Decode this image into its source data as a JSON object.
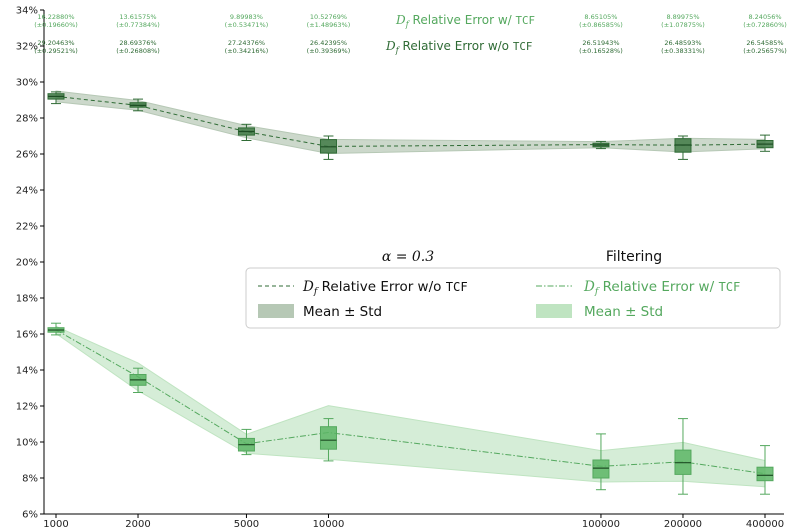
{
  "chart_data": {
    "type": "line",
    "x_scale": "log",
    "x_ticks": [
      "1000",
      "2000",
      "5000",
      "10000",
      "100000",
      "200000",
      "400000"
    ],
    "x": [
      1000,
      2000,
      5000,
      10000,
      100000,
      200000,
      400000
    ],
    "ylim": [
      6,
      34
    ],
    "y_ticks": [
      6,
      8,
      10,
      12,
      14,
      16,
      18,
      20,
      22,
      24,
      26,
      28,
      30,
      32,
      34
    ],
    "y_tick_labels": [
      "6%",
      "8%",
      "10%",
      "12%",
      "14%",
      "16%",
      "18%",
      "20%",
      "22%",
      "24%",
      "26%",
      "28%",
      "30%",
      "32%",
      "34%"
    ],
    "grid": false,
    "colors": {
      "wo": "#2f6b35",
      "wo_band": "#b6c8b5",
      "wo_box": "#3f7a45",
      "w": "#54a85e",
      "w_band": "#bfe4c1",
      "w_box": "#5cb565"
    },
    "series": [
      {
        "name": "Df Relative Error w/o TCF",
        "key": "wo",
        "mean": [
          29.2,
          28.7,
          27.24,
          26.42,
          26.52,
          26.49,
          26.55
        ],
        "std": [
          0.3,
          0.27,
          0.34,
          0.39,
          0.17,
          0.38,
          0.26
        ],
        "box": [
          {
            "whislo": 28.8,
            "q1": 29.05,
            "med": 29.2,
            "q3": 29.35,
            "whishi": 29.45
          },
          {
            "whislo": 28.4,
            "q1": 28.6,
            "med": 28.7,
            "q3": 28.85,
            "whishi": 29.05
          },
          {
            "whislo": 26.75,
            "q1": 27.05,
            "med": 27.25,
            "q3": 27.45,
            "whishi": 27.65
          },
          {
            "whislo": 25.7,
            "q1": 26.05,
            "med": 26.4,
            "q3": 26.8,
            "whishi": 27.0
          },
          {
            "whislo": 26.3,
            "q1": 26.4,
            "med": 26.5,
            "q3": 26.6,
            "whishi": 26.7
          },
          {
            "whislo": 25.7,
            "q1": 26.1,
            "med": 26.5,
            "q3": 26.85,
            "whishi": 27.0
          },
          {
            "whislo": 26.15,
            "q1": 26.35,
            "med": 26.55,
            "q3": 26.75,
            "whishi": 27.05
          }
        ]
      },
      {
        "name": "Df Relative Error w/ TCF",
        "key": "w",
        "mean": [
          16.23,
          13.62,
          9.9,
          10.53,
          8.65,
          8.9,
          8.24
        ],
        "std": [
          0.2,
          0.77,
          0.53,
          1.49,
          0.87,
          1.08,
          0.73
        ],
        "box": [
          {
            "whislo": 15.95,
            "q1": 16.1,
            "med": 16.22,
            "q3": 16.35,
            "whishi": 16.6
          },
          {
            "whislo": 12.75,
            "q1": 13.15,
            "med": 13.45,
            "q3": 13.75,
            "whishi": 14.1
          },
          {
            "whislo": 9.3,
            "q1": 9.5,
            "med": 9.85,
            "q3": 10.2,
            "whishi": 10.7
          },
          {
            "whislo": 8.95,
            "q1": 9.6,
            "med": 10.1,
            "q3": 10.85,
            "whishi": 11.3
          },
          {
            "whislo": 7.35,
            "q1": 8.0,
            "med": 8.55,
            "q3": 9.0,
            "whishi": 10.45
          },
          {
            "whislo": 7.1,
            "q1": 8.2,
            "med": 8.85,
            "q3": 9.55,
            "whishi": 11.3
          },
          {
            "whislo": 7.1,
            "q1": 7.85,
            "med": 8.15,
            "q3": 8.6,
            "whishi": 9.8
          }
        ]
      }
    ],
    "annotations_w_tcf": [
      {
        "mean": "16.22880%",
        "std": "(±0.19660%)"
      },
      {
        "mean": "13.61575%",
        "std": "(±0.77384%)"
      },
      {
        "mean": "9.89983%",
        "std": "(±0.53471%)"
      },
      {
        "mean": "10.52769%",
        "std": "(±1.48963%)"
      },
      {
        "mean": "8.65105%",
        "std": "(±0.86585%)"
      },
      {
        "mean": "8.89975%",
        "std": "(±1.07875%)"
      },
      {
        "mean": "8.24056%",
        "std": "(±0.72860%)"
      }
    ],
    "annotations_wo_tcf": [
      {
        "mean": "29.20463%",
        "std": "(±0.29521%)"
      },
      {
        "mean": "28.69376%",
        "std": "(±0.26808%)"
      },
      {
        "mean": "27.24376%",
        "std": "(±0.34216%)"
      },
      {
        "mean": "26.42395%",
        "std": "(±0.39369%)"
      },
      {
        "mean": "26.51943%",
        "std": "(±0.16528%)"
      },
      {
        "mean": "26.48593%",
        "std": "(±0.38331%)"
      },
      {
        "mean": "26.54585%",
        "std": "(±0.25657%)"
      }
    ],
    "header_w_tcf": {
      "sym": "D",
      "sub": "f",
      "text": " Relative Error w/ ",
      "code": "TCF"
    },
    "header_wo_tcf": {
      "sym": "D",
      "sub": "f",
      "text": " Relative Error w/o ",
      "code": "TCF"
    },
    "alpha_label": "α = 0.3",
    "filtering_label": "Filtering",
    "legend": {
      "wo_line": {
        "sym": "D",
        "sub": "f",
        "text": " Relative Error w/o ",
        "code": "TCF"
      },
      "wo_band": "Mean ± Std",
      "w_line": {
        "sym": "D",
        "sub": "f",
        "text": " Relative Error w/ ",
        "code": "TCF"
      },
      "w_band": "Mean ± Std"
    }
  }
}
